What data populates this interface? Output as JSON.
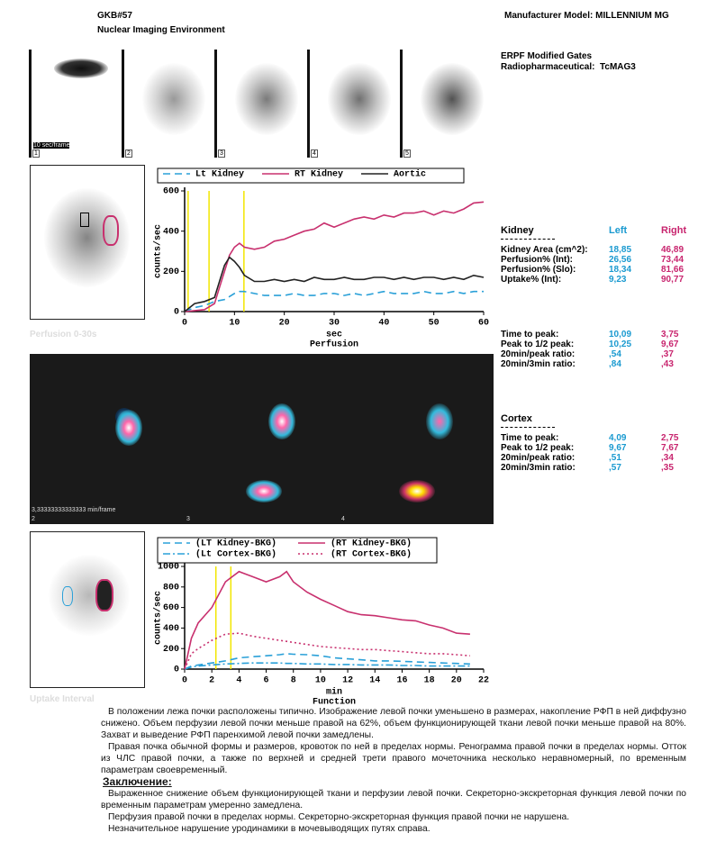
{
  "header": {
    "id": "GKB#57",
    "system": "Nuclear Imaging Environment",
    "model": "Manufacturer Model: MILLENNIUM MG",
    "study": "ERPF Modified Gates",
    "pharm": "Radiopharmaceutical:  TcMAG3"
  },
  "frames": {
    "rate": "10 sec/frame",
    "numbers": [
      "1",
      "2",
      "3",
      "4",
      "5"
    ],
    "caption": "Perfusion 0-30s"
  },
  "dynamic": {
    "rate": "3,33333333333333 min/frame",
    "numbers": [
      "2",
      "3",
      "4"
    ],
    "caption": "Uptake Interval"
  },
  "chart_data": [
    {
      "type": "line",
      "ylabel": "counts/sec",
      "xlabel": "sec",
      "subtitle": "Perfusion",
      "x": [
        0,
        2,
        4,
        6,
        7,
        8,
        9,
        10,
        11,
        12,
        14,
        16,
        18,
        20,
        22,
        24,
        26,
        28,
        30,
        32,
        34,
        36,
        38,
        40,
        42,
        44,
        46,
        48,
        50,
        52,
        54,
        56,
        58,
        60
      ],
      "series": [
        {
          "name": "Lt Kidney",
          "color": "#2aa0d8",
          "linestyle": "dashed",
          "values": [
            0,
            20,
            30,
            50,
            55,
            60,
            75,
            90,
            100,
            100,
            90,
            80,
            80,
            80,
            90,
            80,
            80,
            90,
            90,
            80,
            90,
            80,
            90,
            100,
            90,
            90,
            90,
            100,
            90,
            90,
            100,
            90,
            100,
            100
          ]
        },
        {
          "name": "RT Kidney",
          "color": "#c8306e",
          "linestyle": "solid",
          "values": [
            0,
            5,
            10,
            40,
            120,
            200,
            280,
            320,
            340,
            320,
            310,
            320,
            350,
            360,
            380,
            400,
            410,
            440,
            420,
            440,
            460,
            470,
            460,
            480,
            470,
            490,
            490,
            500,
            480,
            500,
            490,
            510,
            540,
            545
          ]
        },
        {
          "name": "Aortic",
          "color": "#222222",
          "linestyle": "solid",
          "values": [
            0,
            40,
            50,
            70,
            150,
            230,
            270,
            250,
            220,
            180,
            150,
            150,
            160,
            150,
            160,
            150,
            170,
            160,
            160,
            170,
            160,
            160,
            170,
            170,
            160,
            170,
            160,
            170,
            170,
            160,
            170,
            160,
            180,
            170
          ]
        }
      ],
      "xlim": [
        0,
        60
      ],
      "xticks": [
        0,
        10,
        20,
        30,
        40,
        50,
        60
      ],
      "ylim": [
        0,
        600
      ],
      "yticks": [
        0,
        200,
        400,
        600
      ],
      "marker_lines": {
        "color": "#f2e600",
        "x": [
          0.7,
          4.9,
          11.9
        ]
      }
    },
    {
      "type": "line",
      "ylabel": "counts/sec",
      "xlabel": "min",
      "subtitle": "Function",
      "x": [
        0,
        0.5,
        1,
        2,
        3,
        4,
        5,
        6,
        7,
        7.5,
        8,
        9,
        10,
        11,
        12,
        13,
        14,
        15,
        16,
        17,
        18,
        19,
        20,
        21
      ],
      "series": [
        {
          "name": "(LT Kidney-BKG)",
          "color": "#2aa0d8",
          "linestyle": "dashed",
          "values": [
            0,
            30,
            40,
            60,
            80,
            110,
            120,
            130,
            140,
            150,
            145,
            140,
            130,
            110,
            100,
            90,
            80,
            80,
            75,
            70,
            65,
            60,
            55,
            50
          ]
        },
        {
          "name": "(RT Kidney-BKG)",
          "color": "#c8306e",
          "linestyle": "solid",
          "values": [
            0,
            300,
            450,
            600,
            850,
            950,
            900,
            850,
            900,
            950,
            850,
            750,
            680,
            620,
            560,
            530,
            520,
            500,
            480,
            470,
            430,
            400,
            350,
            340
          ]
        },
        {
          "name": "(Lt Cortex-BKG)",
          "color": "#2aa0d8",
          "linestyle": "dashdot",
          "values": [
            0,
            20,
            30,
            40,
            50,
            55,
            60,
            60,
            60,
            55,
            55,
            50,
            50,
            45,
            45,
            40,
            40,
            40,
            35,
            35,
            30,
            30,
            30,
            30
          ]
        },
        {
          "name": "(RT Cortex-BKG)",
          "color": "#c8306e",
          "linestyle": "dotted",
          "values": [
            0,
            150,
            200,
            280,
            340,
            350,
            320,
            300,
            280,
            270,
            260,
            240,
            220,
            210,
            200,
            190,
            190,
            180,
            170,
            160,
            150,
            150,
            140,
            130
          ]
        }
      ],
      "xlim": [
        0,
        22
      ],
      "xticks": [
        0,
        2,
        4,
        6,
        8,
        10,
        12,
        14,
        16,
        18,
        20,
        22
      ],
      "ylim": [
        0,
        1000
      ],
      "yticks": [
        0,
        200,
        400,
        600,
        800,
        1000
      ],
      "marker_lines": {
        "color": "#f2e600",
        "x": [
          2.3,
          3.4
        ]
      }
    }
  ],
  "kidney_table": {
    "title": "Kidney",
    "columns": [
      "Left",
      "Right"
    ],
    "rows": [
      {
        "label": "Kidney Area (cm^2):",
        "values": [
          "18,85",
          "46,89"
        ]
      },
      {
        "label": "Perfusion% (Int):",
        "values": [
          "26,56",
          "73,44"
        ]
      },
      {
        "label": "Perfusion% (Slo):",
        "values": [
          "18,34",
          "81,66"
        ]
      },
      {
        "label": "Uptake% (Int):",
        "values": [
          "9,23",
          "90,77"
        ]
      }
    ]
  },
  "timing_table": {
    "rows": [
      {
        "label": "Time to peak:",
        "values": [
          "10,09",
          "3,75"
        ]
      },
      {
        "label": "Peak to 1/2 peak:",
        "values": [
          "10,25",
          "9,67"
        ]
      },
      {
        "label": "20min/peak ratio:",
        "values": [
          ",54",
          ",37"
        ]
      },
      {
        "label": "20min/3min ratio:",
        "values": [
          ",84",
          ",43"
        ]
      }
    ]
  },
  "cortex_table": {
    "title": "Cortex",
    "rows": [
      {
        "label": "Time to peak:",
        "values": [
          "4,09",
          "2,75"
        ]
      },
      {
        "label": "Peak to 1/2 peak:",
        "values": [
          "9,67",
          "7,67"
        ]
      },
      {
        "label": "20min/peak ratio:",
        "values": [
          ",51",
          ",34"
        ]
      },
      {
        "label": "20min/3min ratio:",
        "values": [
          ",57",
          ",35"
        ]
      }
    ]
  },
  "text": {
    "paragraphs": [
      "В положении лежа почки расположены типично. Изображение левой почки уменьшено в размерах, накопление РФП в ней диффузно снижено. Объем перфузии левой почки меньше правой на 62%, объем функционирующей ткани левой почки меньше правой на 80%. Захват и выведение РФП паренхимой левой почки замедлены.",
      "Правая почка обычной формы и размеров, кровоток по ней в пределах нормы. Ренограмма правой почки в пределах нормы. Отток из ЧЛС правой почки, а также по верхней и средней трети правого мочеточника несколько неравномерный, по временным параметрам своевременный."
    ],
    "conclusion_heading": "Заключение:",
    "conclusion": [
      "Выраженное снижение объем функционирующей ткани и перфузии левой почки. Секреторно-экскреторная функция левой почки по временным параметрам умеренно замедлена.",
      "Перфузия правой почки в пределах нормы. Секреторно-экскреторная функция правой почки не нарушена.",
      "Незначительное нарушение уродинамики в мочевыводящих путях справа."
    ]
  }
}
